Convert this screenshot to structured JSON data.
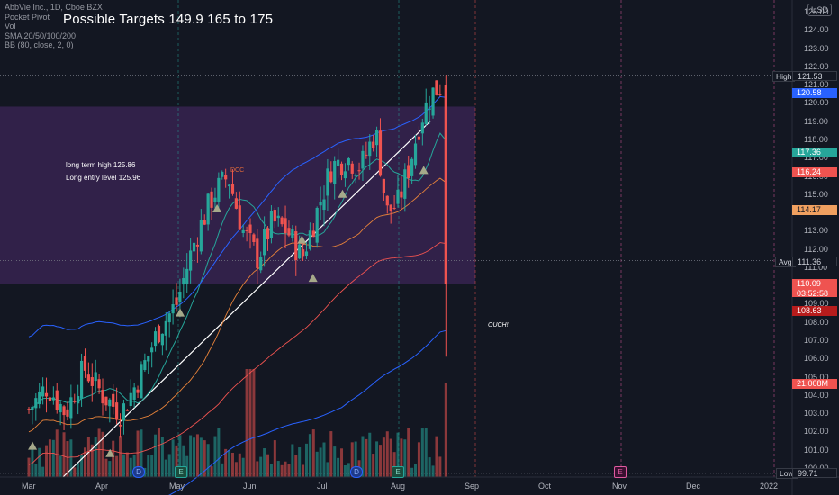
{
  "legend": {
    "symbol_line": "AbbVie Inc., 1D, Cboe BZX",
    "ind1": "Pocket Pivot",
    "ind2": "Vol",
    "ind3": "SMA 20/50/100/200",
    "ind4": "BB (80, close, 2, 0)"
  },
  "headline": "Possible Targets 149.9  165  to 175",
  "currency": "USD",
  "notes": {
    "ltl_high": "long term high 125.86",
    "entry": "Long entry level 125.96",
    "dcc": "DCC",
    "ouch": "OUCH!"
  },
  "price_labels": {
    "high_label": "High",
    "high": "121.53",
    "bb_upper": "120.58",
    "sma20": "117.36",
    "sma50": "116.24",
    "sma100": "114.17",
    "avg_label": "Avg",
    "avg": "111.36",
    "last": "110.09",
    "countdown": "03:52:58",
    "sma200": "108.63",
    "vol": "21.008M",
    "low_label": "Low",
    "low": "99.71"
  },
  "events": {
    "d": "D",
    "e": "E"
  },
  "colors": {
    "up": "#26a69a",
    "down": "#ef5350",
    "bg": "#131722",
    "purple_zone": "#4a2a6a",
    "trend": "#ffffff"
  },
  "chart_data": {
    "type": "candlestick",
    "title": "AbbVie Inc., 1D, Cboe BZX",
    "y_axis": {
      "min": 99,
      "max": 126,
      "ticks": [
        "100.00",
        "101.00",
        "102.00",
        "103.00",
        "104.00",
        "105.00",
        "106.00",
        "107.00",
        "108.00",
        "109.00",
        "110.00",
        "111.00",
        "112.00",
        "113.00",
        "114.00",
        "115.00",
        "116.00",
        "117.00",
        "118.00",
        "119.00",
        "120.00",
        "121.00",
        "122.00",
        "123.00",
        "124.00",
        "125.00"
      ]
    },
    "x_axis": {
      "labels": [
        "Mar",
        "Apr",
        "May",
        "Jun",
        "Jul",
        "Aug",
        "Sep",
        "Oct",
        "Nov",
        "Dec",
        "2022"
      ]
    },
    "close_path": [
      {
        "m": 0.0,
        "c": 103.2
      },
      {
        "m": 0.25,
        "c": 104.5
      },
      {
        "m": 0.5,
        "c": 103.0
      },
      {
        "m": 0.75,
        "c": 105.5
      },
      {
        "m": 1.0,
        "c": 104.0
      },
      {
        "m": 1.25,
        "c": 103.0
      },
      {
        "m": 1.5,
        "c": 105.0
      },
      {
        "m": 1.75,
        "c": 107.5
      },
      {
        "m": 2.0,
        "c": 109.0
      },
      {
        "m": 2.25,
        "c": 112.5
      },
      {
        "m": 2.5,
        "c": 115.0
      },
      {
        "m": 2.7,
        "c": 116.0
      },
      {
        "m": 2.9,
        "c": 113.0
      },
      {
        "m": 3.1,
        "c": 111.5
      },
      {
        "m": 3.3,
        "c": 113.5
      },
      {
        "m": 3.5,
        "c": 113.0
      },
      {
        "m": 3.7,
        "c": 111.5
      },
      {
        "m": 3.9,
        "c": 114.0
      },
      {
        "m": 4.1,
        "c": 116.5
      },
      {
        "m": 4.3,
        "c": 117.0
      },
      {
        "m": 4.5,
        "c": 116.5
      },
      {
        "m": 4.7,
        "c": 118.5
      },
      {
        "m": 4.85,
        "c": 114.0
      },
      {
        "m": 5.0,
        "c": 114.5
      },
      {
        "m": 5.15,
        "c": 116.5
      },
      {
        "m": 5.3,
        "c": 119.0
      },
      {
        "m": 5.45,
        "c": 120.5
      },
      {
        "m": 5.6,
        "c": 121.0
      },
      {
        "m": 5.65,
        "c": 110.09
      }
    ],
    "high": 121.53,
    "low": 99.71,
    "last": 110.09
  }
}
